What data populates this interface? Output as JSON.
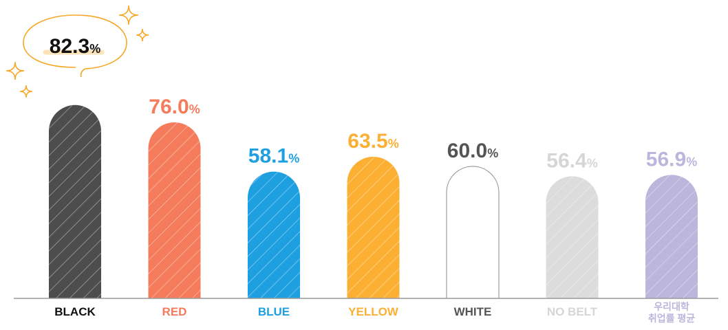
{
  "chart_data": {
    "type": "bar",
    "categories": [
      "BLACK",
      "RED",
      "BLUE",
      "YELLOW",
      "WHITE",
      "NO BELT",
      "우리대학 취업률 평균"
    ],
    "category_lines": [
      [
        "BLACK"
      ],
      [
        "RED"
      ],
      [
        "BLUE"
      ],
      [
        "YELLOW"
      ],
      [
        "WHITE"
      ],
      [
        "NO BELT"
      ],
      [
        "우리대학",
        "취업률 평균"
      ]
    ],
    "values": [
      82.3,
      76.0,
      58.1,
      63.5,
      60.0,
      56.4,
      56.9
    ],
    "value_numbers": [
      "82.3",
      "76.0",
      "58.1",
      "63.5",
      "60.0",
      "56.4",
      "56.9"
    ],
    "value_unit": "%",
    "title": "",
    "xlabel": "",
    "ylabel": "",
    "bar_colors": [
      "#4d4d4d",
      "#f47c5c",
      "#1ea0e0",
      "#fbb034",
      "#ffffff",
      "#dcdcdc",
      "#bcb5dc"
    ],
    "label_colors": [
      "#111111",
      "#f47c5c",
      "#1ea0e0",
      "#fbb034",
      "#555555",
      "#d6d6d6",
      "#bcb5dc"
    ],
    "highlight": {
      "category": "BLACK",
      "accent_color": "#f6a623",
      "shape": "speech-bubble-with-sparkles"
    },
    "pattern": "diagonal-hatch",
    "grid": false,
    "legend": "none"
  }
}
